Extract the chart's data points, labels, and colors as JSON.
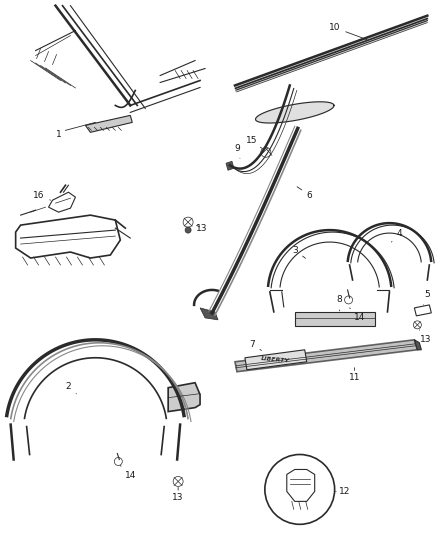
{
  "bg_color": "#ffffff",
  "line_color": "#2a2a2a",
  "label_color": "#1a1a1a",
  "label_fontsize": 6.5,
  "figsize": [
    4.38,
    5.33
  ],
  "dpi": 100,
  "gray1": "#888888",
  "gray2": "#aaaaaa",
  "gray3": "#555555",
  "gray4": "#cccccc",
  "gray5": "#666666"
}
